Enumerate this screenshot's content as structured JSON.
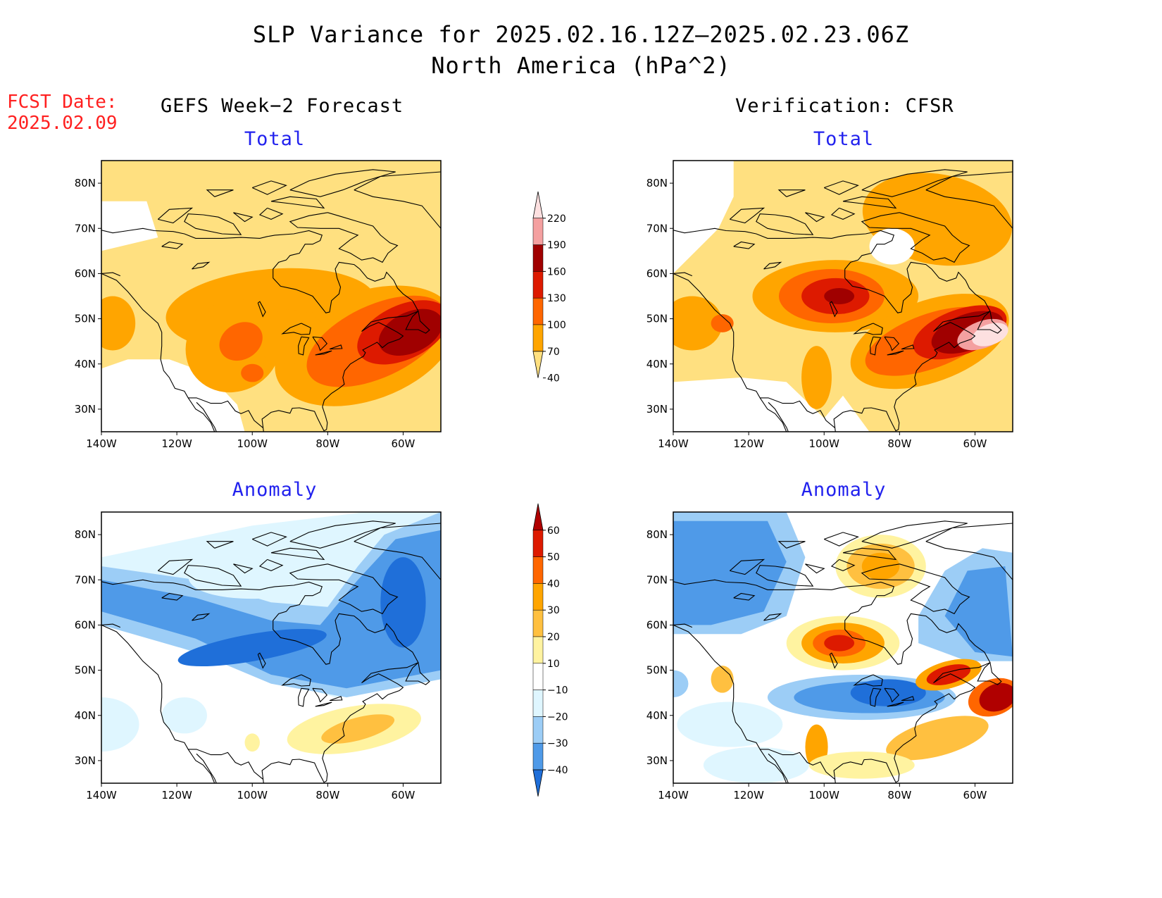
{
  "header": {
    "title_line1": "SLP Variance for 2025.02.16.12Z–2025.02.23.06Z",
    "title_line2": "North America (hPa^2)",
    "fcst_label": "FCST Date:",
    "fcst_date": "2025.02.09",
    "left_column": "GEFS Week−2 Forecast",
    "right_column": "Verification: CFSR"
  },
  "panels": {
    "forecast_total": {
      "title": "Total"
    },
    "verification_total": {
      "title": "Total"
    },
    "forecast_anomaly": {
      "title": "Anomaly"
    },
    "verification_anomaly": {
      "title": "Anomaly"
    }
  },
  "axes": {
    "lat_ticks": [
      "80N",
      "70N",
      "60N",
      "50N",
      "40N",
      "30N"
    ],
    "lon_ticks": [
      "140W",
      "120W",
      "100W",
      "80W",
      "60W"
    ]
  },
  "colorbars": {
    "total": {
      "levels": [
        "220",
        "190",
        "160",
        "130",
        "100",
        "70",
        "40"
      ],
      "colors": [
        "#fde0e0",
        "#f4a0a0",
        "#a00000",
        "#dd1a00",
        "#ff6600",
        "#ffa500",
        "#ffe080"
      ]
    },
    "anomaly": {
      "levels": [
        "60",
        "50",
        "40",
        "30",
        "20",
        "10",
        "−10",
        "−20",
        "−30",
        "−40"
      ],
      "colors": [
        "#b00000",
        "#dd1a00",
        "#ff6600",
        "#ffa500",
        "#ffc040",
        "#fff3a0",
        "#ffffff",
        "#dff6ff",
        "#9ccdf6",
        "#4f9ae8",
        "#1f6fd9"
      ]
    }
  }
}
